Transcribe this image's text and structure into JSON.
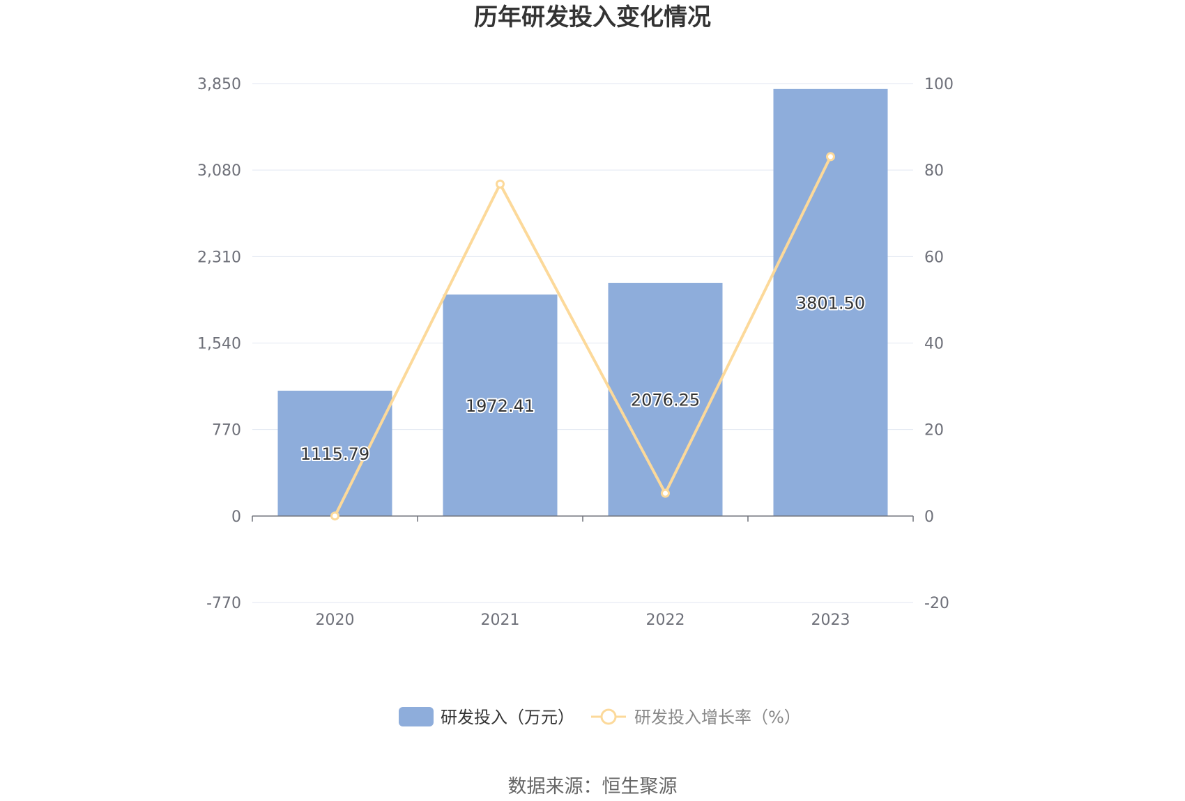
{
  "chart_data": {
    "type": "bar",
    "title": "历年研发投入变化情况",
    "categories": [
      "2020",
      "2021",
      "2022",
      "2023"
    ],
    "series": [
      {
        "name": "研发投入（万元）",
        "type": "bar",
        "axis": "left",
        "values": [
          1115.79,
          1972.41,
          2076.25,
          3801.5
        ],
        "labels": [
          "1115.79",
          "1972.41",
          "2076.25",
          "3801.50"
        ],
        "color": "#8eaddb"
      },
      {
        "name": "研发投入增长率（%）",
        "type": "line",
        "axis": "right",
        "values": [
          0,
          76.77,
          5.26,
          83.1
        ],
        "color": "#fcd99a"
      }
    ],
    "y_left": {
      "min": -770,
      "max": 3850,
      "ticks": [
        -770,
        0,
        770,
        1540,
        2310,
        3080,
        3850
      ],
      "tick_labels": [
        "-770",
        "0",
        "770",
        "1,540",
        "2,310",
        "3,080",
        "3,850"
      ]
    },
    "y_right": {
      "min": -20,
      "max": 100,
      "ticks": [
        -20,
        0,
        20,
        40,
        60,
        80,
        100
      ],
      "tick_labels": [
        "-20",
        "0",
        "20",
        "40",
        "60",
        "80",
        "100"
      ]
    },
    "grid": true,
    "legend_position": "bottom-center"
  },
  "source_text": "数据来源：恒生聚源",
  "colors": {
    "bar": "#8eaddb",
    "line": "#fcd99a",
    "grid": "#e0e6f1",
    "axis": "#6e7079"
  }
}
